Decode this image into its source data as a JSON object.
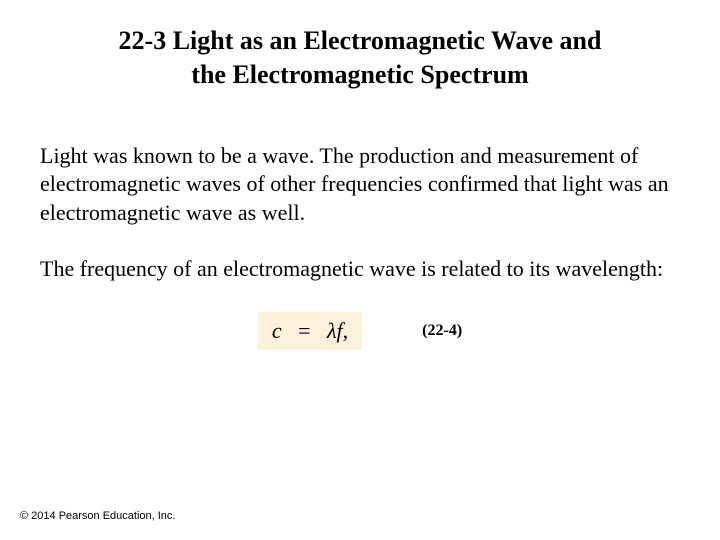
{
  "title_line1": "22-3 Light as an Electromagnetic Wave and",
  "title_line2": "the Electromagnetic Spectrum",
  "paragraph1": "Light was known to be a wave. The production and measurement of electromagnetic waves of other frequencies confirmed that light was an electromagnetic wave as well.",
  "paragraph2": "The frequency of an electromagnetic wave is related to its wavelength:",
  "equation": {
    "lhs": "c",
    "eq": "=",
    "rhs_lambda": "λ",
    "rhs_f": "f",
    "comma": ",",
    "background": "#fcf1db",
    "fontsize": 22
  },
  "equation_label": "(22-4)",
  "copyright": "© 2014 Pearson Education, Inc.",
  "colors": {
    "page_bg": "#ffffff",
    "text": "#000000",
    "equation_bg": "#fcf1db"
  },
  "typography": {
    "title_fontsize": 26,
    "title_weight": "bold",
    "body_fontsize": 22,
    "label_fontsize": 16,
    "copyright_fontsize": 11
  }
}
